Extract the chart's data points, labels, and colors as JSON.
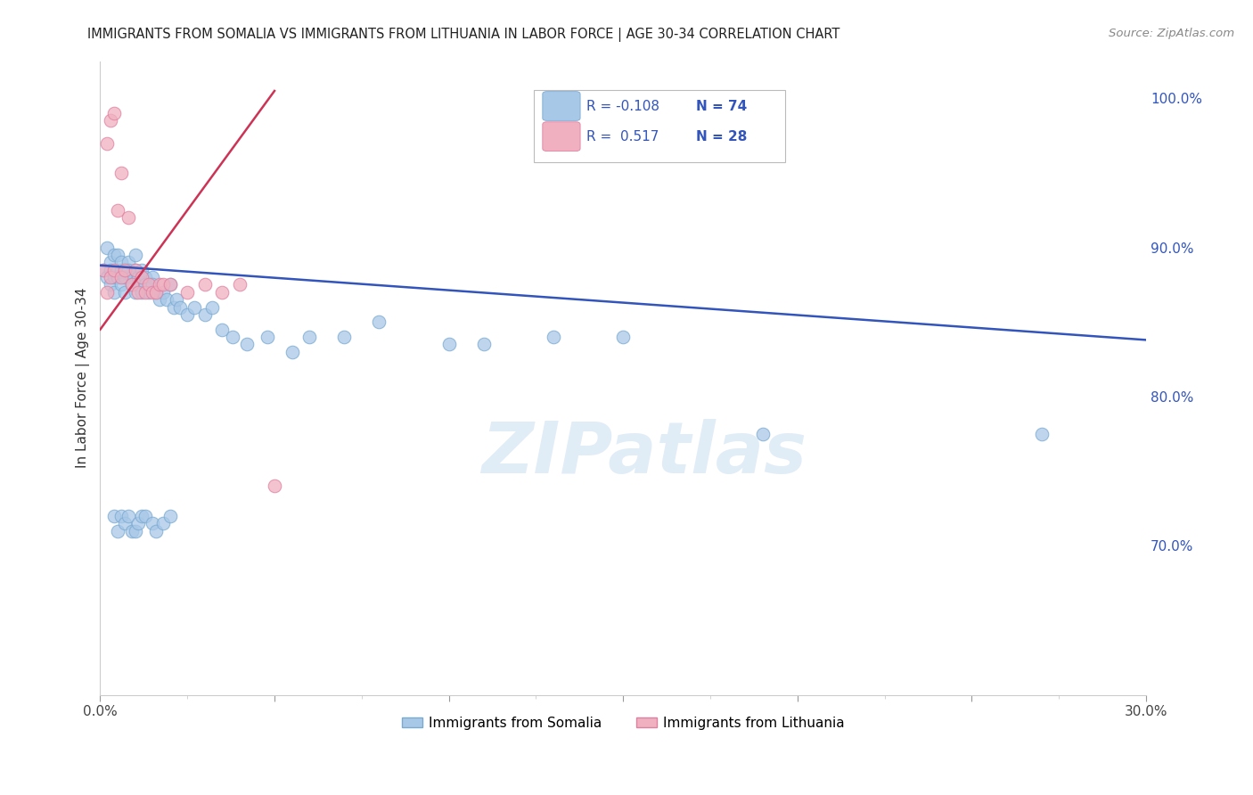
{
  "title": "IMMIGRANTS FROM SOMALIA VS IMMIGRANTS FROM LITHUANIA IN LABOR FORCE | AGE 30-34 CORRELATION CHART",
  "source": "Source: ZipAtlas.com",
  "ylabel": "In Labor Force | Age 30-34",
  "xlim": [
    0.0,
    0.3
  ],
  "ylim": [
    0.6,
    1.025
  ],
  "xticks": [
    0.0,
    0.05,
    0.1,
    0.15,
    0.2,
    0.25,
    0.3
  ],
  "xtick_labels": [
    "0.0%",
    "",
    "",
    "",
    "",
    "",
    "30.0%"
  ],
  "xticks_minor": [
    0.025,
    0.075,
    0.125,
    0.175,
    0.225,
    0.275
  ],
  "yticks_right": [
    0.7,
    0.8,
    0.9,
    1.0
  ],
  "ytick_labels_right": [
    "70.0%",
    "80.0%",
    "90.0%",
    "100.0%"
  ],
  "somalia_color": "#a8c8e8",
  "somalia_edge": "#7aaad0",
  "lithuania_color": "#f0b0c0",
  "lithuania_edge": "#e080a0",
  "regression_blue": "#3355bb",
  "regression_pink": "#cc3355",
  "tick_color": "#3355bb",
  "grid_color": "#cccccc",
  "background_color": "#ffffff",
  "watermark": "ZIPatlas",
  "somalia_x": [
    0.001,
    0.002,
    0.002,
    0.003,
    0.003,
    0.003,
    0.004,
    0.004,
    0.004,
    0.005,
    0.005,
    0.005,
    0.006,
    0.006,
    0.006,
    0.007,
    0.007,
    0.007,
    0.008,
    0.008,
    0.009,
    0.009,
    0.01,
    0.01,
    0.01,
    0.011,
    0.011,
    0.012,
    0.012,
    0.013,
    0.013,
    0.014,
    0.015,
    0.015,
    0.016,
    0.017,
    0.018,
    0.019,
    0.02,
    0.021,
    0.022,
    0.023,
    0.025,
    0.027,
    0.03,
    0.032,
    0.035,
    0.038,
    0.042,
    0.048,
    0.055,
    0.06,
    0.07,
    0.08,
    0.1,
    0.11,
    0.13,
    0.15,
    0.19,
    0.27,
    0.004,
    0.005,
    0.006,
    0.007,
    0.008,
    0.009,
    0.01,
    0.011,
    0.012,
    0.013,
    0.015,
    0.016,
    0.018,
    0.02
  ],
  "somalia_y": [
    0.885,
    0.88,
    0.9,
    0.89,
    0.875,
    0.885,
    0.895,
    0.88,
    0.87,
    0.885,
    0.88,
    0.895,
    0.885,
    0.875,
    0.89,
    0.88,
    0.885,
    0.87,
    0.89,
    0.885,
    0.88,
    0.875,
    0.885,
    0.895,
    0.87,
    0.88,
    0.875,
    0.885,
    0.87,
    0.88,
    0.875,
    0.87,
    0.88,
    0.875,
    0.87,
    0.865,
    0.87,
    0.865,
    0.875,
    0.86,
    0.865,
    0.86,
    0.855,
    0.86,
    0.855,
    0.86,
    0.845,
    0.84,
    0.835,
    0.84,
    0.83,
    0.84,
    0.84,
    0.85,
    0.835,
    0.835,
    0.84,
    0.84,
    0.775,
    0.775,
    0.72,
    0.71,
    0.72,
    0.715,
    0.72,
    0.71,
    0.71,
    0.715,
    0.72,
    0.72,
    0.715,
    0.71,
    0.715,
    0.72
  ],
  "lithuania_x": [
    0.001,
    0.002,
    0.002,
    0.003,
    0.003,
    0.004,
    0.004,
    0.005,
    0.006,
    0.006,
    0.007,
    0.008,
    0.009,
    0.01,
    0.011,
    0.012,
    0.013,
    0.014,
    0.015,
    0.016,
    0.017,
    0.018,
    0.02,
    0.025,
    0.03,
    0.035,
    0.04,
    0.05
  ],
  "lithuania_y": [
    0.885,
    0.87,
    0.97,
    0.88,
    0.985,
    0.885,
    0.99,
    0.925,
    0.88,
    0.95,
    0.885,
    0.92,
    0.875,
    0.885,
    0.87,
    0.88,
    0.87,
    0.875,
    0.87,
    0.87,
    0.875,
    0.875,
    0.875,
    0.87,
    0.875,
    0.87,
    0.875,
    0.74
  ],
  "blue_line_x": [
    0.0,
    0.3
  ],
  "blue_line_y": [
    0.888,
    0.838
  ],
  "pink_line_x": [
    0.0,
    0.05
  ],
  "pink_line_y": [
    0.845,
    1.005
  ]
}
